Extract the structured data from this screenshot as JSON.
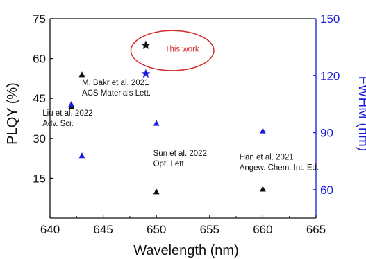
{
  "chart_data": {
    "type": "scatter",
    "xlabel": "Wavelength (nm)",
    "ylabel_left": "PLQY (%)",
    "ylabel_right": "FWHM (nm)",
    "xlim": [
      640,
      665
    ],
    "ylim_left": [
      0,
      75
    ],
    "ylim_right": [
      45,
      150
    ],
    "x_ticks": [
      "640",
      "645",
      "650",
      "655",
      "660",
      "665"
    ],
    "y_left_ticks": [
      "15",
      "30",
      "45",
      "60",
      "75"
    ],
    "y_right_ticks": [
      "60",
      "90",
      "120",
      "150"
    ],
    "grid": false,
    "colors": {
      "left_axis": "#111111",
      "right_axis": "#1a1adb",
      "highlight": "#d42a2a"
    },
    "series": [
      {
        "axis": "left",
        "marker": "triangle",
        "color": "#111111",
        "points": [
          {
            "x": 643,
            "y": 54
          },
          {
            "x": 642,
            "y": 42
          },
          {
            "x": 650,
            "y": 10
          },
          {
            "x": 660,
            "y": 11
          }
        ]
      },
      {
        "axis": "right",
        "marker": "triangle",
        "color": "#1a1adb",
        "points": [
          {
            "x": 642,
            "y": 105
          },
          {
            "x": 643,
            "y": 78
          },
          {
            "x": 650,
            "y": 95
          },
          {
            "x": 660,
            "y": 91
          }
        ]
      },
      {
        "axis": "left",
        "marker": "star",
        "color": "#111111",
        "points": [
          {
            "x": 649,
            "y": 65
          }
        ]
      },
      {
        "axis": "right",
        "marker": "star",
        "color": "#1a1adb",
        "points": [
          {
            "x": 649,
            "y": 121
          }
        ]
      }
    ],
    "annotations": [
      {
        "lines": [
          "M. Bakr et al. 2021",
          "ACS Materials Lett."
        ],
        "x": 643,
        "y": 50
      },
      {
        "lines": [
          "Liu et al. 2022",
          "Adv. Sci."
        ],
        "x": 639.3,
        "y": 38.5
      },
      {
        "lines": [
          "Sun et al. 2022",
          "Opt. Lett."
        ],
        "x": 649.7,
        "y": 23.5
      },
      {
        "lines": [
          "Han et al. 2021",
          "Angew. Chem. Int. Ed."
        ],
        "x": 657.8,
        "y": 22
      }
    ],
    "highlight": {
      "label": "This work",
      "x_from": 647.6,
      "x_to": 655.4,
      "y_from": 55.5,
      "y_to": 70.5
    }
  }
}
